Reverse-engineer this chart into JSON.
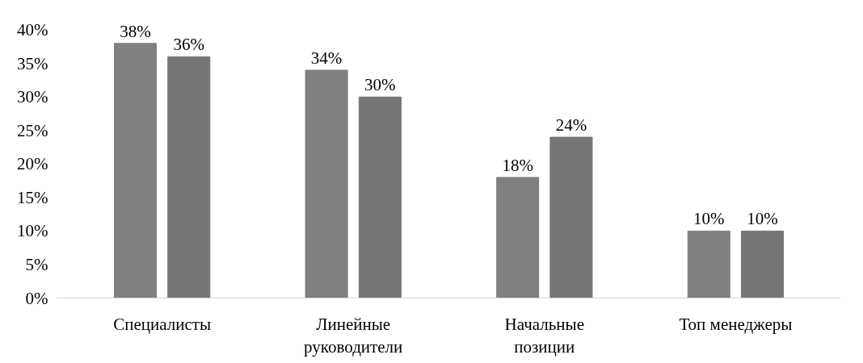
{
  "chart_data": {
    "type": "bar",
    "categories": [
      "Специалисты",
      "Линейные руководители",
      "Начальные позиции",
      "Топ менеджеры"
    ],
    "series": [
      {
        "color": "#808080",
        "values": [
          38,
          34,
          18,
          10
        ]
      },
      {
        "color": "#767676",
        "values": [
          36,
          30,
          24,
          10
        ]
      }
    ],
    "ylim": [
      0,
      40
    ],
    "yticks": [
      {
        "value": 0,
        "label": "0%"
      },
      {
        "value": 5,
        "label": "5%"
      },
      {
        "value": 10,
        "label": "10%"
      },
      {
        "value": 15,
        "label": "15%"
      },
      {
        "value": 20,
        "label": "20%"
      },
      {
        "value": 25,
        "label": "25%"
      },
      {
        "value": 30,
        "label": "30%"
      },
      {
        "value": 35,
        "label": "35%"
      },
      {
        "value": 40,
        "label": "40%"
      }
    ],
    "value_labels": [
      [
        "38%",
        "34%",
        "18%",
        "10%"
      ],
      [
        "36%",
        "30%",
        "24%",
        "10%"
      ]
    ],
    "grid": false
  }
}
